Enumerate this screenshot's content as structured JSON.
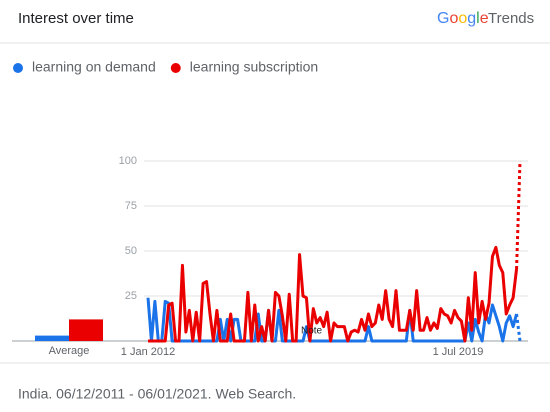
{
  "chart_data": {
    "type": "line",
    "title": "Interest over time",
    "brand": "Google",
    "product": "Trends",
    "footer": "India. 06/12/2011 - 06/01/2021. Web Search.",
    "average_label": "Average",
    "annotations": [
      {
        "text": "Note"
      }
    ],
    "partial_last": true,
    "grid": true,
    "ylim": [
      0,
      100
    ],
    "yticks": [
      25,
      50,
      75,
      100
    ],
    "categories": [
      "1 Jan 2012",
      null,
      null,
      null,
      null,
      null,
      null,
      null,
      null,
      null,
      null,
      null,
      null,
      null,
      null,
      null,
      null,
      null,
      null,
      null,
      null,
      null,
      null,
      null,
      null,
      null,
      null,
      null,
      null,
      null,
      null,
      null,
      null,
      null,
      null,
      null,
      null,
      null,
      null,
      null,
      null,
      null,
      null,
      null,
      null,
      null,
      null,
      null,
      null,
      null,
      null,
      null,
      null,
      null,
      null,
      null,
      null,
      null,
      null,
      null,
      null,
      null,
      null,
      null,
      null,
      null,
      null,
      null,
      null,
      null,
      null,
      null,
      null,
      null,
      null,
      null,
      null,
      null,
      null,
      null,
      null,
      null,
      null,
      null,
      null,
      null,
      null,
      null,
      null,
      null,
      "1 Jul 2019",
      null,
      null,
      null,
      null,
      null,
      null,
      null,
      null,
      null,
      null,
      null,
      null,
      null,
      null,
      null,
      null,
      null,
      null
    ],
    "series": [
      {
        "name": "learning on demand",
        "color": "#1a73e8",
        "average": 3,
        "values": [
          24,
          0,
          22,
          0,
          0,
          22,
          21,
          0,
          0,
          0,
          0,
          0,
          0,
          0,
          0,
          0,
          0,
          0,
          0,
          0,
          0,
          12,
          0,
          12,
          0,
          12,
          12,
          0,
          0,
          0,
          0,
          0,
          15,
          0,
          0,
          17,
          0,
          0,
          17,
          0,
          0,
          0,
          0,
          0,
          0,
          0,
          8,
          0,
          0,
          0,
          0,
          0,
          0,
          0,
          0,
          0,
          0,
          0,
          0,
          0,
          0,
          0,
          0,
          0,
          8,
          0,
          0,
          0,
          0,
          0,
          0,
          0,
          0,
          0,
          0,
          0,
          17,
          0,
          0,
          0,
          0,
          0,
          0,
          0,
          0,
          0,
          0,
          0,
          0,
          0,
          0,
          0,
          0,
          10,
          0,
          12,
          5,
          0,
          15,
          10,
          20,
          14,
          8,
          0,
          10,
          14,
          8,
          15,
          0
        ]
      },
      {
        "name": "learning subscription",
        "color": "#ea0000",
        "average": 12,
        "values": [
          0,
          0,
          0,
          0,
          0,
          0,
          20,
          21,
          0,
          0,
          42,
          5,
          17,
          0,
          16,
          0,
          32,
          33,
          15,
          0,
          17,
          0,
          0,
          0,
          15,
          0,
          0,
          0,
          0,
          27,
          0,
          20,
          0,
          8,
          0,
          17,
          0,
          27,
          25,
          14,
          0,
          26,
          0,
          0,
          48,
          25,
          24,
          0,
          18,
          10,
          13,
          8,
          16,
          0,
          10,
          8,
          8,
          8,
          0,
          5,
          6,
          5,
          12,
          6,
          15,
          8,
          10,
          20,
          12,
          28,
          12,
          8,
          28,
          6,
          6,
          6,
          17,
          6,
          28,
          6,
          6,
          13,
          6,
          10,
          7,
          18,
          15,
          14,
          10,
          17,
          13,
          11,
          0,
          24,
          6,
          38,
          10,
          22,
          12,
          21,
          47,
          52,
          42,
          38,
          15,
          20,
          24,
          40,
          100
        ]
      }
    ]
  }
}
